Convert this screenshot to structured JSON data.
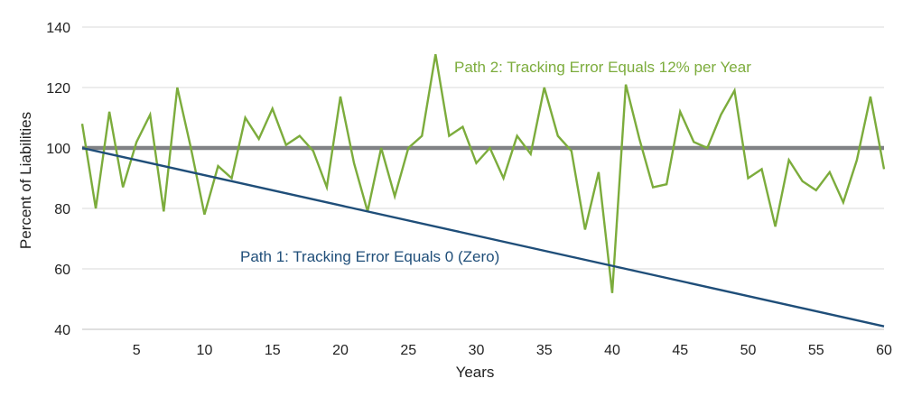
{
  "chart_data": {
    "type": "line",
    "title": "",
    "xlabel": "Years",
    "ylabel": "Percent of Liabilities",
    "xlim": [
      1,
      60
    ],
    "ylim": [
      40,
      140
    ],
    "x_ticks": [
      5,
      10,
      15,
      20,
      25,
      30,
      35,
      40,
      45,
      50,
      55,
      60
    ],
    "y_ticks": [
      40,
      60,
      80,
      100,
      120,
      140
    ],
    "grid": true,
    "colors": {
      "path1": "#1f4e79",
      "path2": "#7cac3c",
      "reference": "#808285",
      "grid": "#d9d9d9"
    },
    "reference_line": {
      "y": 100
    },
    "series": [
      {
        "name": "Path 1: Tracking Error Equals 0 (Zero)",
        "color": "#1f4e79",
        "x": [
          1,
          60
        ],
        "y": [
          100,
          41
        ]
      },
      {
        "name": "Path 2: Tracking Error Equals 12% per Year",
        "color": "#7cac3c",
        "x": [
          1,
          2,
          3,
          4,
          5,
          6,
          7,
          8,
          9,
          10,
          11,
          12,
          13,
          14,
          15,
          16,
          17,
          18,
          19,
          20,
          21,
          22,
          23,
          24,
          25,
          26,
          27,
          28,
          29,
          30,
          31,
          32,
          33,
          34,
          35,
          36,
          37,
          38,
          39,
          40,
          41,
          42,
          43,
          44,
          45,
          46,
          47,
          48,
          49,
          50,
          51,
          52,
          53,
          54,
          55,
          56,
          57,
          58,
          59,
          60
        ],
        "y": [
          108,
          80,
          112,
          87,
          102,
          111,
          79,
          120,
          100,
          78,
          94,
          90,
          110,
          103,
          113,
          101,
          104,
          99,
          87,
          117,
          95,
          79,
          100,
          84,
          100,
          104,
          131,
          104,
          107,
          95,
          100,
          90,
          104,
          98,
          120,
          104,
          99,
          73,
          92,
          52,
          121,
          103,
          87,
          88,
          112,
          102,
          100,
          111,
          119,
          90,
          93,
          74,
          96,
          89,
          86,
          92,
          82,
          96,
          117,
          93
        ]
      }
    ],
    "annotations": [
      {
        "text": "Path 2: Tracking Error Equals 12% per Year",
        "color": "#7cac3c",
        "series": 1
      },
      {
        "text": "Path 1: Tracking Error Equals 0 (Zero)",
        "color": "#1f4e79",
        "series": 0
      }
    ]
  }
}
